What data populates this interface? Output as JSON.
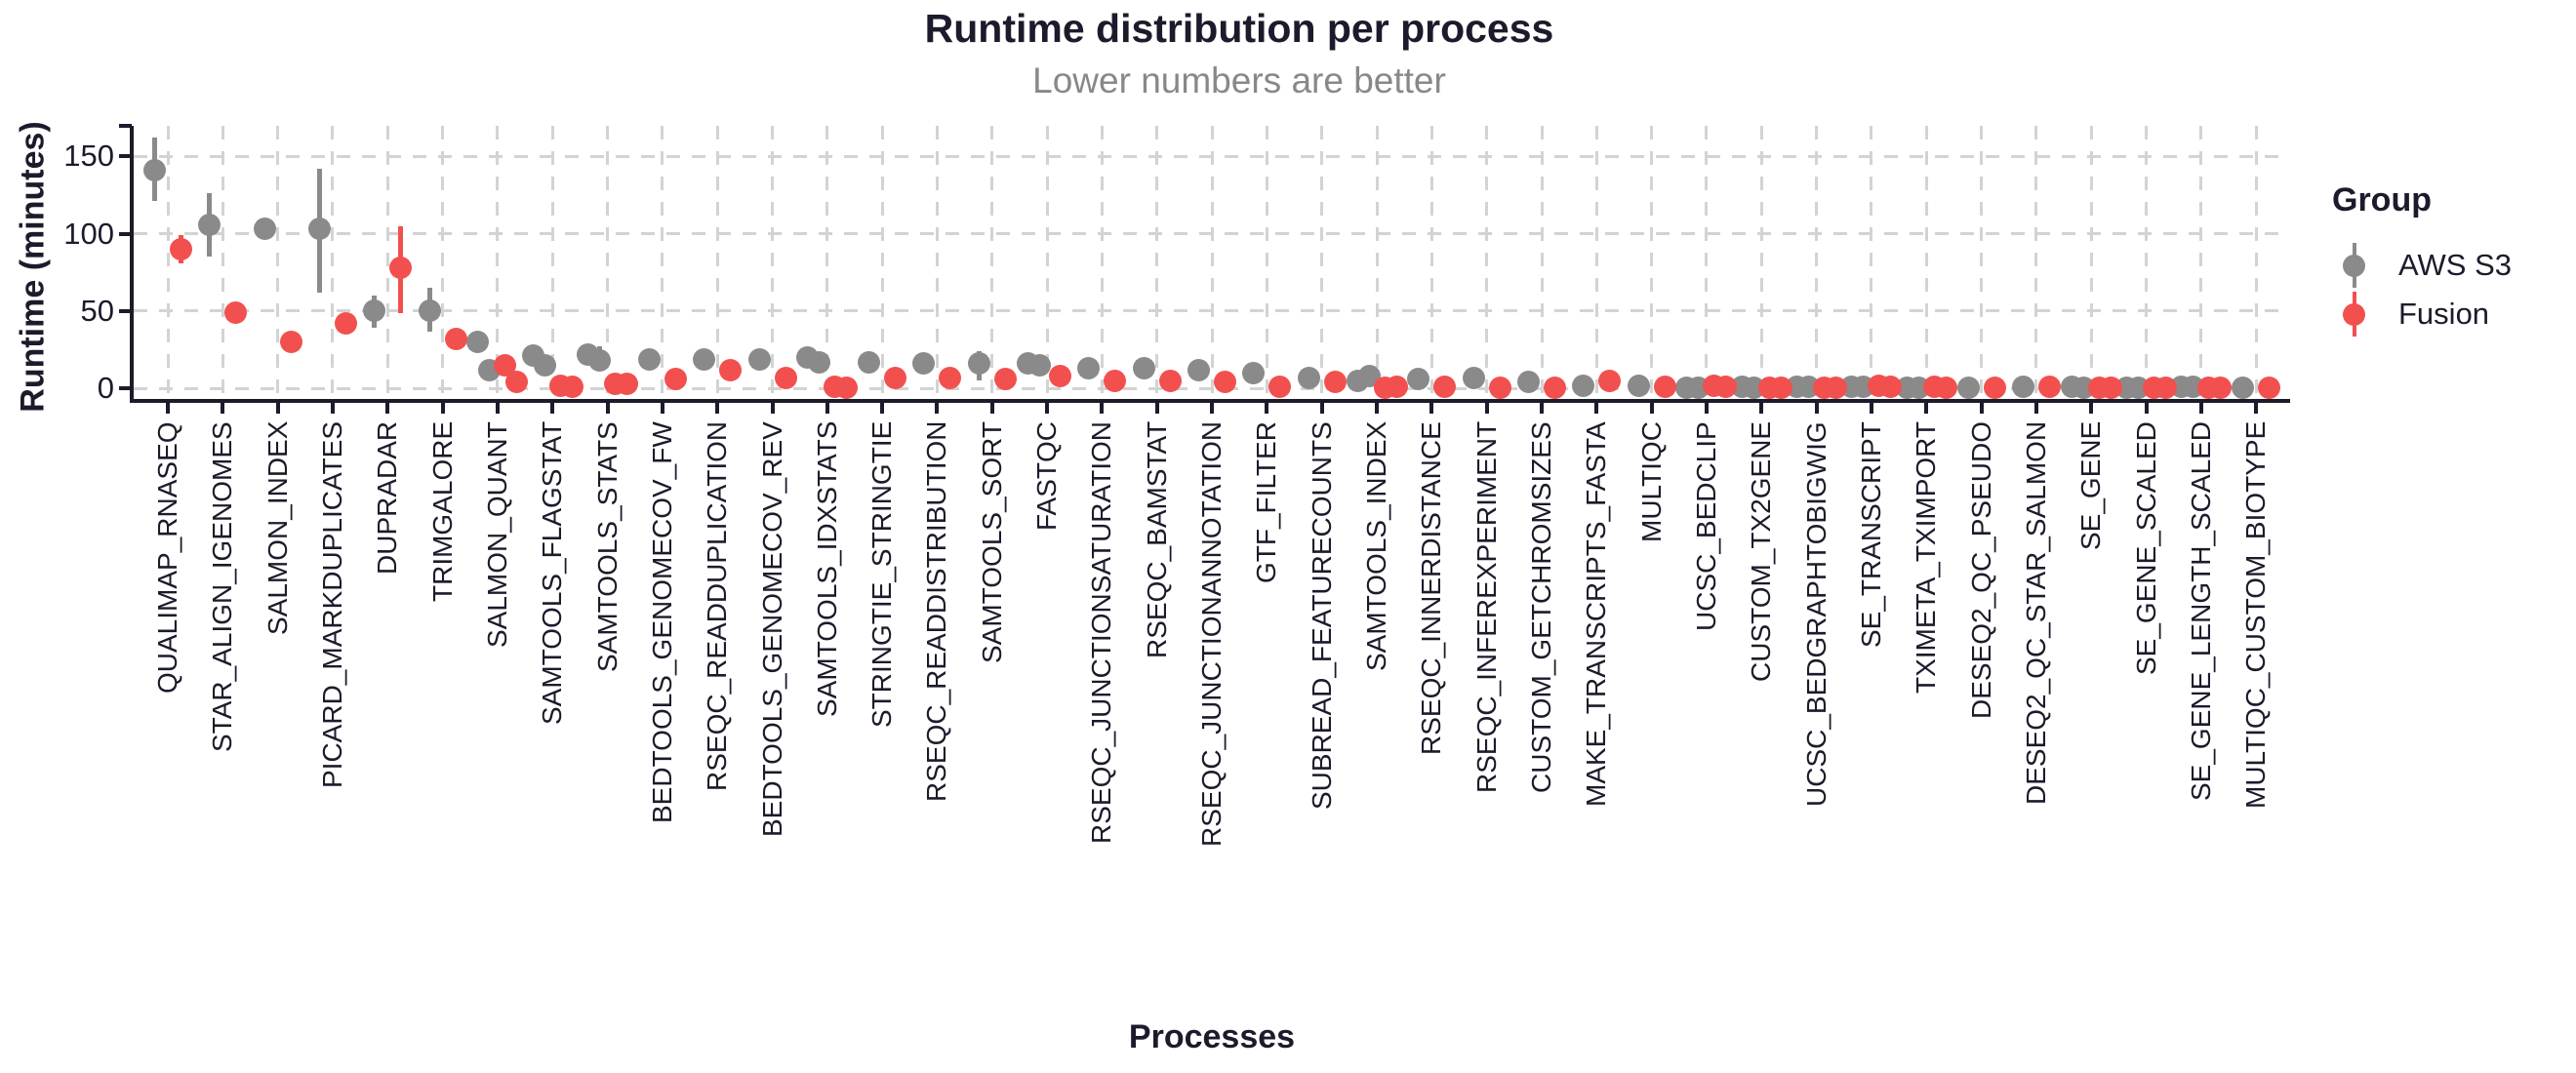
{
  "header": {
    "title": "Runtime distribution per process",
    "subtitle": "Lower numbers are better"
  },
  "axes": {
    "x_title": "Processes",
    "y_title": "Runtime (minutes)",
    "y_ticks": [
      0,
      50,
      100,
      150
    ]
  },
  "legend": {
    "title": "Group",
    "items": [
      {
        "label": "AWS S3",
        "color": "#8a8a8a"
      },
      {
        "label": "Fusion",
        "color": "#f2504e"
      }
    ]
  },
  "colors": {
    "text": "#1b1b2b",
    "subtitle": "#888888",
    "grid": "#d3d3d3",
    "aws_s3": "#8a8a8a",
    "fusion": "#f2504e"
  },
  "chart_data": {
    "type": "scatter",
    "title": "Runtime distribution per process",
    "subtitle": "Lower numbers are better",
    "xlabel": "Processes",
    "ylabel": "Runtime (minutes)",
    "unit": "minutes",
    "ylim": [
      0,
      170
    ],
    "yticks": [
      0,
      50,
      100,
      150
    ],
    "grid": "dashed-major",
    "legend_position": "right",
    "point_style": "dodged points with error bars, multiple runs per group jittered",
    "series": [
      {
        "name": "AWS S3",
        "color": "#8a8a8a",
        "data": [
          {
            "process": "QUALIMAP_RNASEQ",
            "values": [
              141
            ],
            "error": [
              121,
              162
            ]
          },
          {
            "process": "STAR_ALIGN_IGENOMES",
            "values": [
              106
            ],
            "error": [
              85,
              126
            ]
          },
          {
            "process": "SALMON_INDEX",
            "values": [
              103
            ],
            "error": null
          },
          {
            "process": "PICARD_MARKDUPLICATES",
            "values": [
              103
            ],
            "error": [
              62,
              142
            ]
          },
          {
            "process": "DUPRADAR",
            "values": [
              50
            ],
            "error": [
              39,
              60
            ]
          },
          {
            "process": "TRIMGALORE",
            "values": [
              50
            ],
            "error": [
              37,
              65
            ]
          },
          {
            "process": "SALMON_QUANT",
            "values": [
              30,
              12
            ],
            "error": null
          },
          {
            "process": "SAMTOOLS_FLAGSTAT",
            "values": [
              21,
              15
            ],
            "error": null
          },
          {
            "process": "SAMTOOLS_STATS",
            "values": [
              22,
              18
            ],
            "error": [
              16,
              27
            ]
          },
          {
            "process": "BEDTOOLS_GENOMECOV_FW",
            "values": [
              19
            ],
            "error": null
          },
          {
            "process": "RSEQC_READDUPLICATION",
            "values": [
              19
            ],
            "error": null
          },
          {
            "process": "BEDTOOLS_GENOMECOV_REV",
            "values": [
              19
            ],
            "error": null
          },
          {
            "process": "SAMTOOLS_IDXSTATS",
            "values": [
              20,
              17
            ],
            "error": null
          },
          {
            "process": "STRINGTIE_STRINGTIE",
            "values": [
              17
            ],
            "error": null
          },
          {
            "process": "RSEQC_READDISTRIBUTION",
            "values": [
              16
            ],
            "error": null
          },
          {
            "process": "SAMTOOLS_SORT",
            "values": [
              16
            ],
            "error": [
              5,
              24
            ]
          },
          {
            "process": "FASTQC",
            "values": [
              16,
              15
            ],
            "error": null
          },
          {
            "process": "RSEQC_JUNCTIONSATURATION",
            "values": [
              13
            ],
            "error": null
          },
          {
            "process": "RSEQC_BAMSTAT",
            "values": [
              13
            ],
            "error": null
          },
          {
            "process": "RSEQC_JUNCTIONANNOTATION",
            "values": [
              12
            ],
            "error": null
          },
          {
            "process": "GTF_FILTER",
            "values": [
              10
            ],
            "error": null
          },
          {
            "process": "SUBREAD_FEATURECOUNTS",
            "values": [
              7
            ],
            "error": null
          },
          {
            "process": "SAMTOOLS_INDEX",
            "values": [
              5,
              8
            ],
            "error": null
          },
          {
            "process": "RSEQC_INNERDISTANCE",
            "values": [
              6
            ],
            "error": null
          },
          {
            "process": "RSEQC_INFEREXPERIMENT",
            "values": [
              7
            ],
            "error": null
          },
          {
            "process": "CUSTOM_GETCHROMSIZES",
            "values": [
              4
            ],
            "error": null
          },
          {
            "process": "MAKE_TRANSCRIPTS_FASTA",
            "values": [
              2
            ],
            "error": null
          },
          {
            "process": "MULTIQC",
            "values": [
              2
            ],
            "error": null
          },
          {
            "process": "UCSC_BEDCLIP",
            "values": [
              0.5,
              0.5
            ],
            "error": null
          },
          {
            "process": "CUSTOM_TX2GENE",
            "values": [
              1,
              0.5
            ],
            "error": null
          },
          {
            "process": "UCSC_BEDGRAPHTOBIGWIG",
            "values": [
              1,
              1
            ],
            "error": null
          },
          {
            "process": "SE_TRANSCRIPT",
            "values": [
              1,
              1
            ],
            "error": null
          },
          {
            "process": "TXIMETA_TXIMPORT",
            "values": [
              0.5,
              0.5
            ],
            "error": null
          },
          {
            "process": "DESEQ2_QC_PSEUDO",
            "values": [
              0.5
            ],
            "error": null
          },
          {
            "process": "DESEQ2_QC_STAR_SALMON",
            "values": [
              1
            ],
            "error": null
          },
          {
            "process": "SE_GENE",
            "values": [
              1,
              0.5
            ],
            "error": null
          },
          {
            "process": "SE_GENE_SCALED",
            "values": [
              0.5,
              0.5
            ],
            "error": null
          },
          {
            "process": "SE_GENE_LENGTH_SCALED",
            "values": [
              1,
              1
            ],
            "error": null
          },
          {
            "process": "MULTIQC_CUSTOM_BIOTYPE",
            "values": [
              0.5
            ],
            "error": null
          }
        ]
      },
      {
        "name": "Fusion",
        "color": "#f2504e",
        "data": [
          {
            "process": "QUALIMAP_RNASEQ",
            "values": [
              90
            ],
            "error": [
              81,
              99
            ]
          },
          {
            "process": "STAR_ALIGN_IGENOMES",
            "values": [
              49
            ],
            "error": null
          },
          {
            "process": "SALMON_INDEX",
            "values": [
              30
            ],
            "error": null
          },
          {
            "process": "PICARD_MARKDUPLICATES",
            "values": [
              42
            ],
            "error": null
          },
          {
            "process": "DUPRADAR",
            "values": [
              78
            ],
            "error": [
              49,
              105
            ]
          },
          {
            "process": "TRIMGALORE",
            "values": [
              32
            ],
            "error": null
          },
          {
            "process": "SALMON_QUANT",
            "values": [
              15,
              4
            ],
            "error": null
          },
          {
            "process": "SAMTOOLS_FLAGSTAT",
            "values": [
              2,
              1
            ],
            "error": null
          },
          {
            "process": "SAMTOOLS_STATS",
            "values": [
              3,
              3
            ],
            "error": null
          },
          {
            "process": "BEDTOOLS_GENOMECOV_FW",
            "values": [
              6
            ],
            "error": null
          },
          {
            "process": "RSEQC_READDUPLICATION",
            "values": [
              12
            ],
            "error": null
          },
          {
            "process": "BEDTOOLS_GENOMECOV_REV",
            "values": [
              7
            ],
            "error": null
          },
          {
            "process": "SAMTOOLS_IDXSTATS",
            "values": [
              1,
              0.5
            ],
            "error": null
          },
          {
            "process": "STRINGTIE_STRINGTIE",
            "values": [
              7
            ],
            "error": null
          },
          {
            "process": "RSEQC_READDISTRIBUTION",
            "values": [
              7
            ],
            "error": null
          },
          {
            "process": "SAMTOOLS_SORT",
            "values": [
              6
            ],
            "error": null
          },
          {
            "process": "FASTQC",
            "values": [
              8
            ],
            "error": null
          },
          {
            "process": "RSEQC_JUNCTIONSATURATION",
            "values": [
              5
            ],
            "error": null
          },
          {
            "process": "RSEQC_BAMSTAT",
            "values": [
              5
            ],
            "error": null
          },
          {
            "process": "RSEQC_JUNCTIONANNOTATION",
            "values": [
              4
            ],
            "error": null
          },
          {
            "process": "GTF_FILTER",
            "values": [
              1
            ],
            "error": null
          },
          {
            "process": "SUBREAD_FEATURECOUNTS",
            "values": [
              4
            ],
            "error": null
          },
          {
            "process": "SAMTOOLS_INDEX",
            "values": [
              0.5,
              1
            ],
            "error": null
          },
          {
            "process": "RSEQC_INNERDISTANCE",
            "values": [
              1
            ],
            "error": null
          },
          {
            "process": "RSEQC_INFEREXPERIMENT",
            "values": [
              0.5
            ],
            "error": null
          },
          {
            "process": "CUSTOM_GETCHROMSIZES",
            "values": [
              0.5
            ],
            "error": null
          },
          {
            "process": "MAKE_TRANSCRIPTS_FASTA",
            "values": [
              5
            ],
            "error": null
          },
          {
            "process": "MULTIQC",
            "values": [
              1
            ],
            "error": null
          },
          {
            "process": "UCSC_BEDCLIP",
            "values": [
              1.5,
              1
            ],
            "error": null
          },
          {
            "process": "CUSTOM_TX2GENE",
            "values": [
              0.5,
              0.5
            ],
            "error": null
          },
          {
            "process": "UCSC_BEDGRAPHTOBIGWIG",
            "values": [
              0.5,
              0.5
            ],
            "error": null
          },
          {
            "process": "SE_TRANSCRIPT",
            "values": [
              1.5,
              1
            ],
            "error": null
          },
          {
            "process": "TXIMETA_TXIMPORT",
            "values": [
              1,
              0.5
            ],
            "error": null
          },
          {
            "process": "DESEQ2_QC_PSEUDO",
            "values": [
              0.5
            ],
            "error": null
          },
          {
            "process": "DESEQ2_QC_STAR_SALMON",
            "values": [
              1
            ],
            "error": null
          },
          {
            "process": "SE_GENE",
            "values": [
              0.5,
              0.5
            ],
            "error": null
          },
          {
            "process": "SE_GENE_SCALED",
            "values": [
              0.5,
              0.5
            ],
            "error": null
          },
          {
            "process": "SE_GENE_LENGTH_SCALED",
            "values": [
              0.5,
              0.5
            ],
            "error": null
          },
          {
            "process": "MULTIQC_CUSTOM_BIOTYPE",
            "values": [
              0.5
            ],
            "error": null
          }
        ]
      }
    ]
  }
}
